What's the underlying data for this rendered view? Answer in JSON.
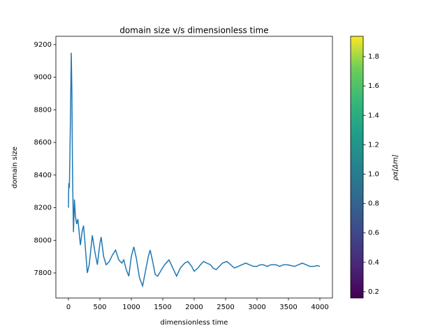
{
  "chart_data": {
    "type": "line",
    "title": "domain size v/s dimensionless time",
    "x_label": "dimensionless time",
    "y_label": "domain size",
    "x": [
      0,
      5,
      15,
      30,
      45,
      55,
      65,
      80,
      95,
      110,
      130,
      150,
      170,
      190,
      220,
      240,
      260,
      280,
      300,
      330,
      380,
      420,
      460,
      500,
      520,
      560,
      600,
      650,
      700,
      750,
      800,
      850,
      880,
      920,
      960,
      1000,
      1040,
      1080,
      1130,
      1180,
      1220,
      1270,
      1300,
      1340,
      1380,
      1420,
      1480,
      1530,
      1600,
      1660,
      1720,
      1780,
      1850,
      1900,
      1960,
      2000,
      2060,
      2100,
      2150,
      2200,
      2260,
      2300,
      2350,
      2400,
      2450,
      2520,
      2580,
      2640,
      2700,
      2760,
      2820,
      2880,
      2940,
      3000,
      3050,
      3100,
      3160,
      3220,
      3300,
      3360,
      3420,
      3480,
      3540,
      3600,
      3660,
      3720,
      3780,
      3840,
      3900,
      3960,
      4000
    ],
    "series": [
      {
        "color": "#1f77b4",
        "values": [
          8200,
          8350,
          8320,
          8700,
          9150,
          8900,
          8400,
          8050,
          8250,
          8150,
          8100,
          8130,
          8050,
          7970,
          8060,
          8090,
          8000,
          7900,
          7800,
          7850,
          8030,
          7930,
          7850,
          7980,
          8020,
          7900,
          7850,
          7870,
          7910,
          7940,
          7880,
          7860,
          7880,
          7820,
          7780,
          7900,
          7960,
          7890,
          7770,
          7720,
          7800,
          7900,
          7940,
          7870,
          7790,
          7780,
          7820,
          7850,
          7880,
          7830,
          7780,
          7830,
          7860,
          7870,
          7840,
          7810,
          7830,
          7850,
          7870,
          7860,
          7850,
          7830,
          7820,
          7840,
          7860,
          7870,
          7850,
          7830,
          7840,
          7850,
          7860,
          7850,
          7840,
          7840,
          7850,
          7850,
          7840,
          7850,
          7850,
          7840,
          7850,
          7850,
          7845,
          7840,
          7850,
          7860,
          7850,
          7840,
          7840,
          7845,
          7840
        ]
      }
    ],
    "xlim": [
      -200,
      4200
    ],
    "xticks": [
      0,
      500,
      1000,
      1500,
      2000,
      2500,
      3000,
      3500,
      4000
    ],
    "ylim": [
      7646,
      9251
    ],
    "yticks": [
      7800,
      8000,
      8200,
      8400,
      8600,
      8800,
      9000,
      9200
    ],
    "colorbar": {
      "label": "ρα[Δm]",
      "colormap": "viridis",
      "lim": [
        0.157,
        1.938
      ],
      "ticks": [
        0.2,
        0.4,
        0.6,
        0.8,
        {
          "value": 1,
          "label": "1.0"
        },
        1.2,
        1.4,
        1.6,
        1.8
      ]
    }
  }
}
